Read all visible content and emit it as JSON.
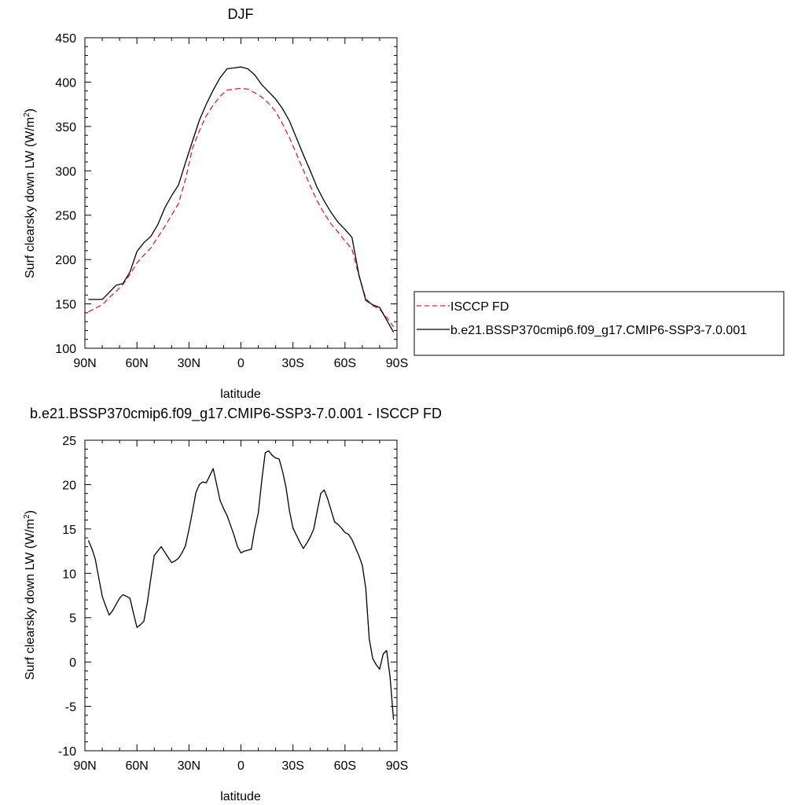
{
  "chart_data": [
    {
      "type": "line",
      "title": "DJF",
      "xlabel": "latitude",
      "ylabel": "Surf clearsky down LW (W/m",
      "ylabel_sup": "2",
      "ylabel_end": ")",
      "xlim": [
        -90,
        90
      ],
      "ylim": [
        100,
        450
      ],
      "xticks": [
        -90,
        -60,
        -30,
        0,
        30,
        60,
        90
      ],
      "xtick_labels": [
        "90N",
        "60N",
        "30N",
        "0",
        "30S",
        "60S",
        "90S"
      ],
      "yticks": [
        100,
        150,
        200,
        250,
        300,
        350,
        400,
        450
      ],
      "ytick_labels": [
        "100",
        "150",
        "200",
        "250",
        "300",
        "350",
        "400",
        "450"
      ],
      "grid": false,
      "legend_position": "right",
      "series": [
        {
          "name": "ISCCP FD",
          "color": "#e8202a",
          "dash": "dashed",
          "x": [
            -88,
            -84,
            -80,
            -76,
            -72,
            -68,
            -64,
            -60,
            -56,
            -52,
            -48,
            -44,
            -40,
            -36,
            -32,
            -28,
            -24,
            -20,
            -16,
            -12,
            -8,
            -4,
            0,
            4,
            8,
            12,
            16,
            20,
            24,
            28,
            32,
            36,
            40,
            44,
            48,
            52,
            56,
            60,
            64,
            68,
            72,
            76,
            80,
            84,
            88
          ],
          "y": [
            141,
            145,
            149,
            157,
            164,
            172,
            183,
            196,
            205,
            213,
            225,
            237,
            250,
            263,
            290,
            325,
            345,
            362,
            374,
            384,
            391,
            392,
            393,
            392,
            388,
            383,
            376,
            367,
            353,
            337,
            319,
            301,
            283,
            266,
            252,
            240,
            231,
            221,
            212,
            182,
            156,
            148,
            144,
            135,
            124
          ]
        },
        {
          "name": "b.e21.BSSP370cmip6.f09_g17.CMIP6-SSP3-7.0.001",
          "color": "#000000",
          "dash": "solid",
          "x": [
            -88,
            -84,
            -80,
            -76,
            -72,
            -68,
            -64,
            -60,
            -56,
            -52,
            -48,
            -44,
            -40,
            -36,
            -32,
            -28,
            -24,
            -20,
            -16,
            -12,
            -8,
            -4,
            0,
            4,
            8,
            12,
            16,
            20,
            24,
            28,
            32,
            36,
            40,
            44,
            48,
            52,
            56,
            60,
            64,
            68,
            72,
            76,
            80,
            84,
            88
          ],
          "y": [
            155,
            155,
            155,
            163,
            171,
            173,
            186,
            209,
            219,
            226,
            239,
            258,
            272,
            284,
            309,
            333,
            357,
            375,
            391,
            405,
            415,
            416,
            417,
            415,
            408,
            397,
            389,
            381,
            370,
            356,
            337,
            318,
            300,
            281,
            266,
            253,
            242,
            234,
            225,
            183,
            154,
            149,
            146,
            132,
            118
          ]
        }
      ]
    },
    {
      "type": "line",
      "title": "b.e21.BSSP370cmip6.f09_g17.CMIP6-SSP3-7.0.001 - ISCCP FD",
      "xlabel": "latitude",
      "ylabel": "Surf clearsky down LW (W/m",
      "ylabel_sup": "2",
      "ylabel_end": ")",
      "xlim": [
        -90,
        90
      ],
      "ylim": [
        -10,
        25
      ],
      "xticks": [
        -90,
        -60,
        -30,
        0,
        30,
        60,
        90
      ],
      "xtick_labels": [
        "90N",
        "60N",
        "30N",
        "0",
        "30S",
        "60S",
        "90S"
      ],
      "yticks": [
        -10,
        -5,
        0,
        5,
        10,
        15,
        20,
        25
      ],
      "ytick_labels": [
        "-10",
        "-5",
        "0",
        "5",
        "10",
        "15",
        "20",
        "25"
      ],
      "grid": false,
      "series": [
        {
          "color": "#000000",
          "dash": "solid",
          "x": [
            -88,
            -86,
            -84,
            -82,
            -80,
            -78,
            -76,
            -74,
            -72,
            -70,
            -68,
            -66,
            -64,
            -62,
            -60,
            -58,
            -56,
            -54,
            -52,
            -50,
            -48,
            -46,
            -44,
            -42,
            -40,
            -38,
            -36,
            -34,
            -32,
            -30,
            -28,
            -26,
            -24,
            -22,
            -20,
            -18,
            -16,
            -14,
            -12,
            -10,
            -8,
            -6,
            -4,
            -2,
            0,
            2,
            4,
            6,
            8,
            10,
            12,
            14,
            16,
            18,
            20,
            22,
            24,
            26,
            28,
            30,
            32,
            34,
            36,
            38,
            40,
            42,
            44,
            46,
            48,
            50,
            52,
            54,
            56,
            58,
            60,
            62,
            64,
            66,
            68,
            70,
            72,
            74,
            76,
            78,
            80,
            82,
            84,
            86,
            88
          ],
          "y": [
            13.7,
            12.8,
            11.6,
            9.5,
            7.4,
            6.3,
            5.3,
            5.8,
            6.5,
            7.2,
            7.6,
            7.4,
            7.2,
            5.5,
            3.9,
            4.2,
            4.6,
            6.7,
            9.4,
            12.0,
            12.5,
            13.0,
            12.4,
            11.8,
            11.2,
            11.4,
            11.7,
            12.3,
            13.1,
            14.9,
            16.9,
            19.1,
            20.0,
            20.3,
            20.2,
            21.0,
            21.8,
            20.0,
            18.2,
            17.3,
            16.5,
            15.4,
            14.3,
            13.0,
            12.3,
            12.5,
            12.6,
            12.7,
            15.0,
            16.8,
            20.5,
            23.6,
            23.8,
            23.3,
            23.0,
            22.9,
            21.5,
            19.7,
            17.0,
            15.1,
            14.3,
            13.5,
            12.8,
            13.4,
            14.1,
            15.0,
            17.0,
            19.0,
            19.4,
            18.4,
            17.1,
            15.8,
            15.5,
            15.1,
            14.6,
            14.4,
            13.8,
            12.9,
            12.0,
            10.9,
            8.3,
            2.6,
            0.4,
            -0.3,
            -0.8,
            0.9,
            1.3,
            -1.7,
            -6.5
          ]
        }
      ]
    }
  ]
}
